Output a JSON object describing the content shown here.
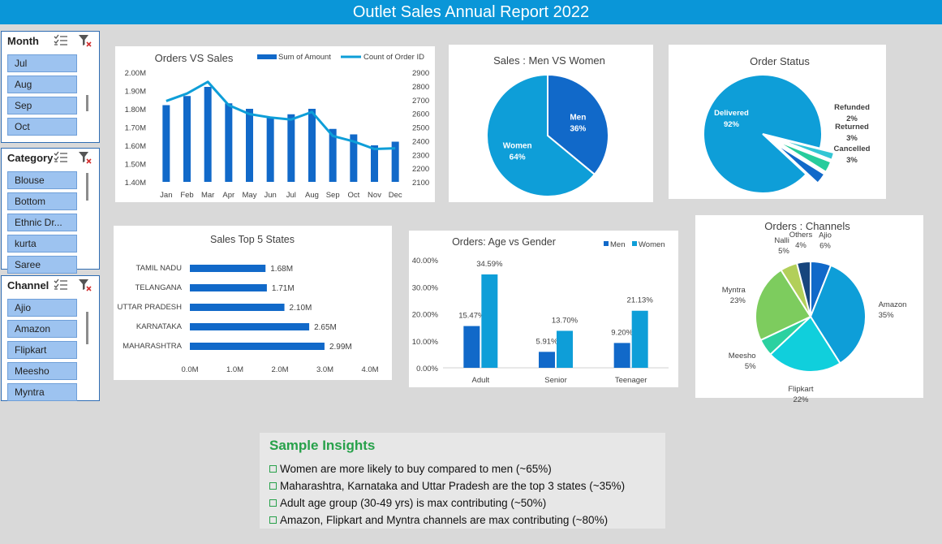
{
  "title": "Outlet Sales Annual Report 2022",
  "slicers": {
    "month": {
      "title": "Month",
      "items": [
        "Jul",
        "Aug",
        "Sep",
        "Oct"
      ]
    },
    "category": {
      "title": "Category",
      "items": [
        "Blouse",
        "Bottom",
        "Ethnic Dr...",
        "kurta",
        "Saree"
      ]
    },
    "channel": {
      "title": "Channel",
      "items": [
        "Ajio",
        "Amazon",
        "Flipkart",
        "Meesho",
        "Myntra"
      ]
    }
  },
  "colors": {
    "dark_blue": "#1169c9",
    "light_blue": "#0e9ed8",
    "header": "#0a96d8",
    "accent_green": "#27a14a"
  },
  "insights": {
    "title": "Sample Insights",
    "items": [
      "Women are more likely to buy compared to men (~65%)",
      "Maharashtra, Karnataka and Uttar Pradesh are the top 3 states (~35%)",
      "Adult age group (30-49 yrs) is max contributing (~50%)",
      "Amazon, Flipkart and Myntra channels are max contributing (~80%)"
    ]
  },
  "chart_data": [
    {
      "id": "orders-vs-sales",
      "type": "bar",
      "title": "Orders VS Sales",
      "categories": [
        "Jan",
        "Feb",
        "Mar",
        "Apr",
        "May",
        "Jun",
        "Jul",
        "Aug",
        "Sep",
        "Oct",
        "Nov",
        "Dec"
      ],
      "series": [
        {
          "name": "Sum of Amount",
          "type": "bar",
          "axis": "left",
          "values": [
            1.82,
            1.87,
            1.92,
            1.83,
            1.8,
            1.75,
            1.77,
            1.8,
            1.69,
            1.66,
            1.6,
            1.62
          ]
        },
        {
          "name": "Count of Order ID",
          "type": "line",
          "axis": "right",
          "values": [
            2690,
            2745,
            2830,
            2660,
            2595,
            2570,
            2555,
            2610,
            2435,
            2395,
            2340,
            2345
          ]
        }
      ],
      "left_axis": {
        "ticks": [
          "2.00M",
          "1.90M",
          "1.80M",
          "1.70M",
          "1.60M",
          "1.50M",
          "1.40M"
        ],
        "ylim": [
          1.4,
          2.0
        ]
      },
      "right_axis": {
        "ticks": [
          "2900",
          "2800",
          "2700",
          "2600",
          "2500",
          "2400",
          "2300",
          "2200",
          "2100"
        ],
        "ylim": [
          2100,
          2900
        ]
      },
      "legend": "top-right"
    },
    {
      "id": "sales-men-women",
      "type": "pie",
      "title": "Sales : Men VS Women",
      "slices": [
        {
          "label": "Men",
          "value": 36,
          "display": "36%",
          "color": "#1169c9"
        },
        {
          "label": "Women",
          "value": 64,
          "display": "64%",
          "color": "#0e9ed8"
        }
      ]
    },
    {
      "id": "order-status",
      "type": "pie",
      "title": "Order Status",
      "slices": [
        {
          "label": "Delivered",
          "value": 92,
          "display": "92%",
          "color": "#0e9ed8"
        },
        {
          "label": "Refunded",
          "value": 2,
          "display": "2%",
          "color": "#33c6d4"
        },
        {
          "label": "Returned",
          "value": 3,
          "display": "3%",
          "color": "#27cc9c"
        },
        {
          "label": "Cancelled",
          "value": 3,
          "display": "3%",
          "color": "#1169c9"
        }
      ]
    },
    {
      "id": "sales-top-states",
      "type": "bar",
      "orientation": "horizontal",
      "title": "Sales Top 5 States",
      "categories": [
        "TAMIL NADU",
        "TELANGANA",
        "UTTAR PRADESH",
        "KARNATAKA",
        "MAHARASHTRA"
      ],
      "values": [
        1.68,
        1.71,
        2.1,
        2.65,
        2.99
      ],
      "data_labels": [
        "1.68M",
        "1.71M",
        "2.10M",
        "2.65M",
        "2.99M"
      ],
      "x_ticks": [
        "0.0M",
        "1.0M",
        "2.0M",
        "3.0M",
        "4.0M"
      ],
      "xlim": [
        0,
        4
      ]
    },
    {
      "id": "age-vs-gender",
      "type": "bar",
      "title": "Orders: Age vs Gender",
      "categories": [
        "Adult",
        "Senior",
        "Teenager"
      ],
      "series": [
        {
          "name": "Men",
          "values": [
            15.47,
            5.91,
            9.2
          ],
          "labels": [
            "15.47%",
            "5.91%",
            "9.20%"
          ]
        },
        {
          "name": "Women",
          "values": [
            34.59,
            13.7,
            21.13
          ],
          "labels": [
            "34.59%",
            "13.70%",
            "21.13%"
          ]
        }
      ],
      "y_ticks": [
        "40.00%",
        "30.00%",
        "20.00%",
        "10.00%",
        "0.00%"
      ],
      "ylim": [
        0,
        40
      ],
      "legend": "top-right"
    },
    {
      "id": "orders-channels",
      "type": "pie",
      "title": "Orders : Channels",
      "slices": [
        {
          "label": "Ajio",
          "value": 6,
          "display": "6%",
          "color": "#1169c9"
        },
        {
          "label": "Amazon",
          "value": 35,
          "display": "35%",
          "color": "#0e9ed8"
        },
        {
          "label": "Flipkart",
          "value": 22,
          "display": "22%",
          "color": "#10cfdc"
        },
        {
          "label": "Meesho",
          "value": 5,
          "display": "5%",
          "color": "#2bd1a0"
        },
        {
          "label": "Myntra",
          "value": 23,
          "display": "23%",
          "color": "#7dcc5e"
        },
        {
          "label": "Nalli",
          "value": 5,
          "display": "5%",
          "color": "#b2cf5a"
        },
        {
          "label": "Others",
          "value": 4,
          "display": "4%",
          "color": "#17457d"
        }
      ]
    }
  ]
}
